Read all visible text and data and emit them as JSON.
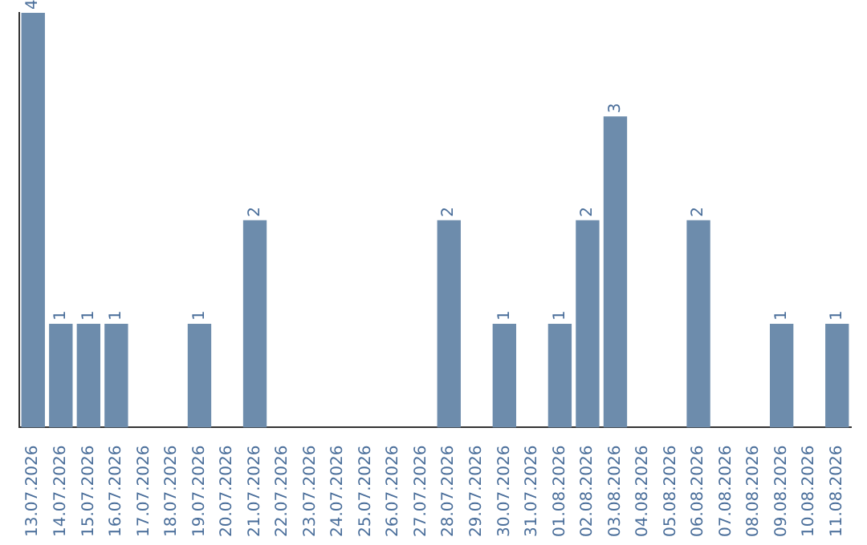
{
  "chart_data": {
    "type": "bar",
    "categories": [
      "13.07.2026",
      "14.07.2026",
      "15.07.2026",
      "16.07.2026",
      "17.07.2026",
      "18.07.2026",
      "19.07.2026",
      "20.07.2026",
      "21.07.2026",
      "22.07.2026",
      "23.07.2026",
      "24.07.2026",
      "25.07.2026",
      "26.07.2026",
      "27.07.2026",
      "28.07.2026",
      "29.07.2026",
      "30.07.2026",
      "31.07.2026",
      "01.08.2026",
      "02.08.2026",
      "03.08.2026",
      "04.08.2026",
      "05.08.2026",
      "06.08.2026",
      "07.08.2026",
      "08.08.2026",
      "09.08.2026",
      "10.08.2026",
      "11.08.2026"
    ],
    "values": [
      4,
      1,
      1,
      1,
      0,
      0,
      1,
      0,
      2,
      0,
      0,
      0,
      0,
      0,
      0,
      2,
      0,
      1,
      0,
      1,
      2,
      3,
      0,
      0,
      2,
      0,
      0,
      1,
      0,
      1
    ],
    "value_labels": [
      "4",
      "1",
      "1",
      "1",
      null,
      null,
      "1",
      null,
      "2",
      null,
      null,
      null,
      null,
      null,
      null,
      "2",
      null,
      "1",
      null,
      "1",
      "2",
      "3",
      null,
      null,
      "2",
      null,
      null,
      "1",
      null,
      "1"
    ],
    "color": "#6d8cac",
    "tick_labels": "x",
    "grid": false,
    "legend": false
  }
}
